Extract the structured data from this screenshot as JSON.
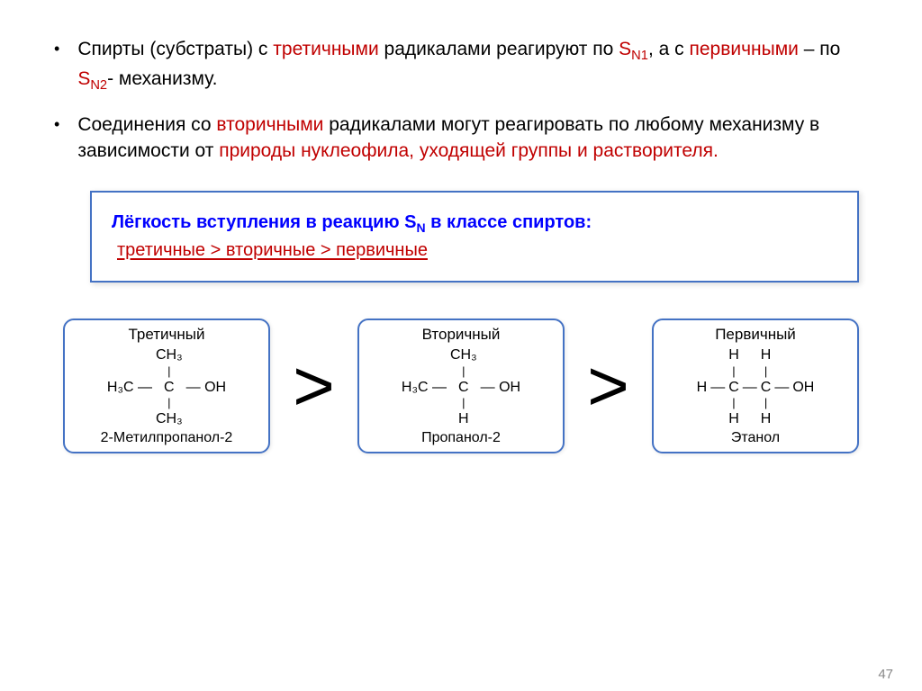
{
  "bullets": [
    {
      "pre": "Спирты (субстраты) с ",
      "tert": "третичными",
      "mid1": " радикалами реагируют по ",
      "sn1": "S",
      "sn1sub": "N1",
      "mid2": ", а с ",
      "prim": "первичными",
      "mid3": " – по ",
      "sn2": "S",
      "sn2sub": "N2",
      "post": "- механизму."
    },
    {
      "pre": "Соединения со ",
      "sec": "вторичными",
      "mid1": " радикалами могут реагировать по любому механизму в зависимости от ",
      "nat": "природы нуклеофила, уходящей группы и растворителя.",
      "post": ""
    }
  ],
  "info": {
    "line1_pre": "Лёгкость вступления в реакцию S",
    "line1_sub": "N",
    "line1_post": "  в классе спиртов:",
    "line2": "третичные  > вторичные > первичные"
  },
  "molecules": [
    {
      "title": "Третичный",
      "name": "2-Метилпропанол-2",
      "top": "CH₃",
      "left": "H₃C",
      "center": "C",
      "right": "OH",
      "bottom": "CH₃"
    },
    {
      "title": "Вторичный",
      "name": "Пропанол-2",
      "top": "CH₃",
      "left": "H₃C",
      "center": "C",
      "right": "OH",
      "bottom": "H"
    },
    {
      "title": "Первичный",
      "name": "Этанол"
    }
  ],
  "gt": ">",
  "page_number": "47",
  "colors": {
    "accent_red": "#c00000",
    "accent_blue": "#0000ff",
    "box_border": "#4472c4",
    "text": "#000000",
    "background": "#ffffff",
    "page_num": "#888888"
  }
}
